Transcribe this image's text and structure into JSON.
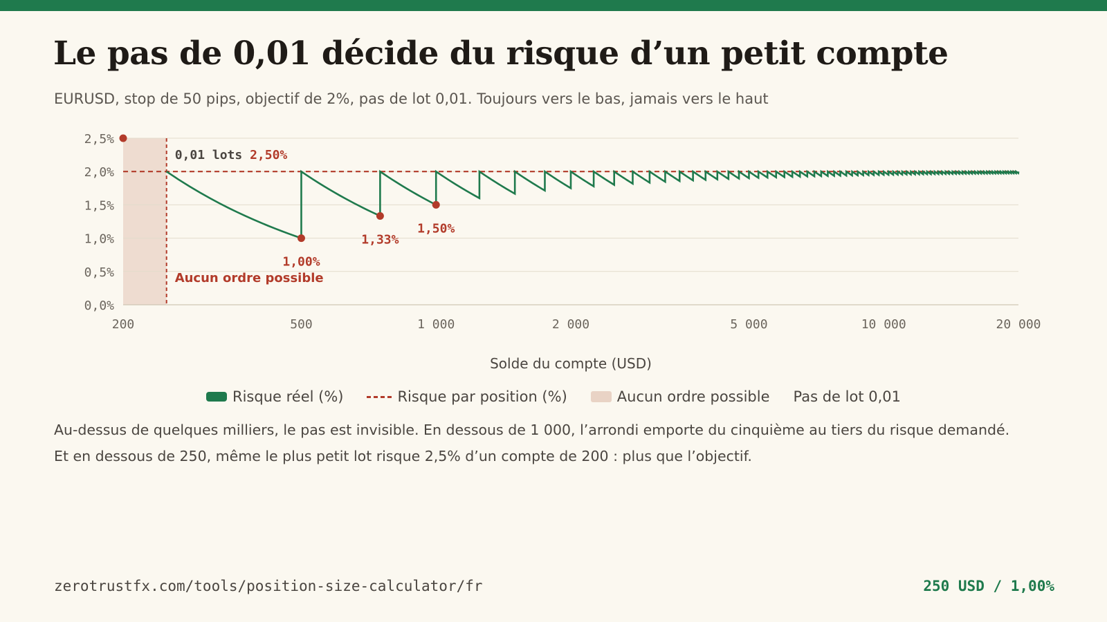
{
  "header": {
    "title": "Le pas de 0,01 décide du risque d’un petit compte",
    "subtitle": "EURUSD, stop de 50 pips, objectif de 2%, pas de lot 0,01. Toujours vers le bas, jamais vers le haut"
  },
  "colors": {
    "accent": "#1f7a4d",
    "target": "#b23b2a",
    "zone": "#e9d3c5",
    "grid": "#e3dccb",
    "muted": "#6b655d"
  },
  "chart_data": {
    "type": "line",
    "xlabel": "Solde du compte (USD)",
    "x_scale": "log",
    "xlim": [
      200,
      20000
    ],
    "ylim": [
      0,
      2.5
    ],
    "x_ticks": [
      200,
      500,
      1000,
      2000,
      5000,
      10000,
      20000
    ],
    "x_tick_labels": [
      "200",
      "500",
      "1 000",
      "2 000",
      "5 000",
      "10 000",
      "20 000"
    ],
    "y_ticks": [
      0,
      0.5,
      1.0,
      1.5,
      2.0,
      2.5
    ],
    "y_tick_labels": [
      "0,0%",
      "0,5%",
      "1,0%",
      "1,5%",
      "2,0%",
      "2,5%"
    ],
    "grid": true,
    "legend_position": "bottom",
    "series": [
      {
        "name": "Risque réel (%)",
        "style": "solid",
        "color": "#1f7a4d",
        "x_range": [
          250,
          20000
        ],
        "y_range": [
          1.0,
          2.0
        ]
      },
      {
        "name": "Risque par position (%)",
        "style": "dashed",
        "color": "#b23b2a",
        "x": [
          200,
          20000
        ],
        "y": [
          2.0,
          2.0
        ]
      }
    ],
    "zones": [
      {
        "name": "Aucun ordre possible",
        "x": [
          200,
          250
        ]
      }
    ],
    "points": [
      {
        "x": 200,
        "y": 2.5,
        "label": ""
      },
      {
        "x": 500,
        "y": 1.0,
        "label": "1,00%"
      },
      {
        "x": 750,
        "y": 1.333,
        "label": "1,33%"
      },
      {
        "x": 1000,
        "y": 1.5,
        "label": "1,50%"
      }
    ],
    "annotations": {
      "threshold_x": 250,
      "min_lot_prefix": "0,01 lots",
      "min_lot_value": "2,50%",
      "zone_label": "Aucun ordre possible"
    },
    "legend": {
      "actual": "Risque réel (%)",
      "target": "Risque par position (%)",
      "zone": "Aucun ordre possible",
      "step": "Pas de lot 0,01"
    }
  },
  "notes": {
    "line1": "Au-dessus de quelques milliers, le pas est invisible. En dessous de 1 000, l’arrondi emporte du cinquième au tiers du risque demandé.",
    "line2": "Et en dessous de 250, même le plus petit lot risque 2,5% d’un compte de 200 : plus que l’objectif."
  },
  "footer": {
    "url": "zerotrustfx.com/tools/position-size-calculator/fr",
    "stat": "250 USD / 1,00%"
  }
}
